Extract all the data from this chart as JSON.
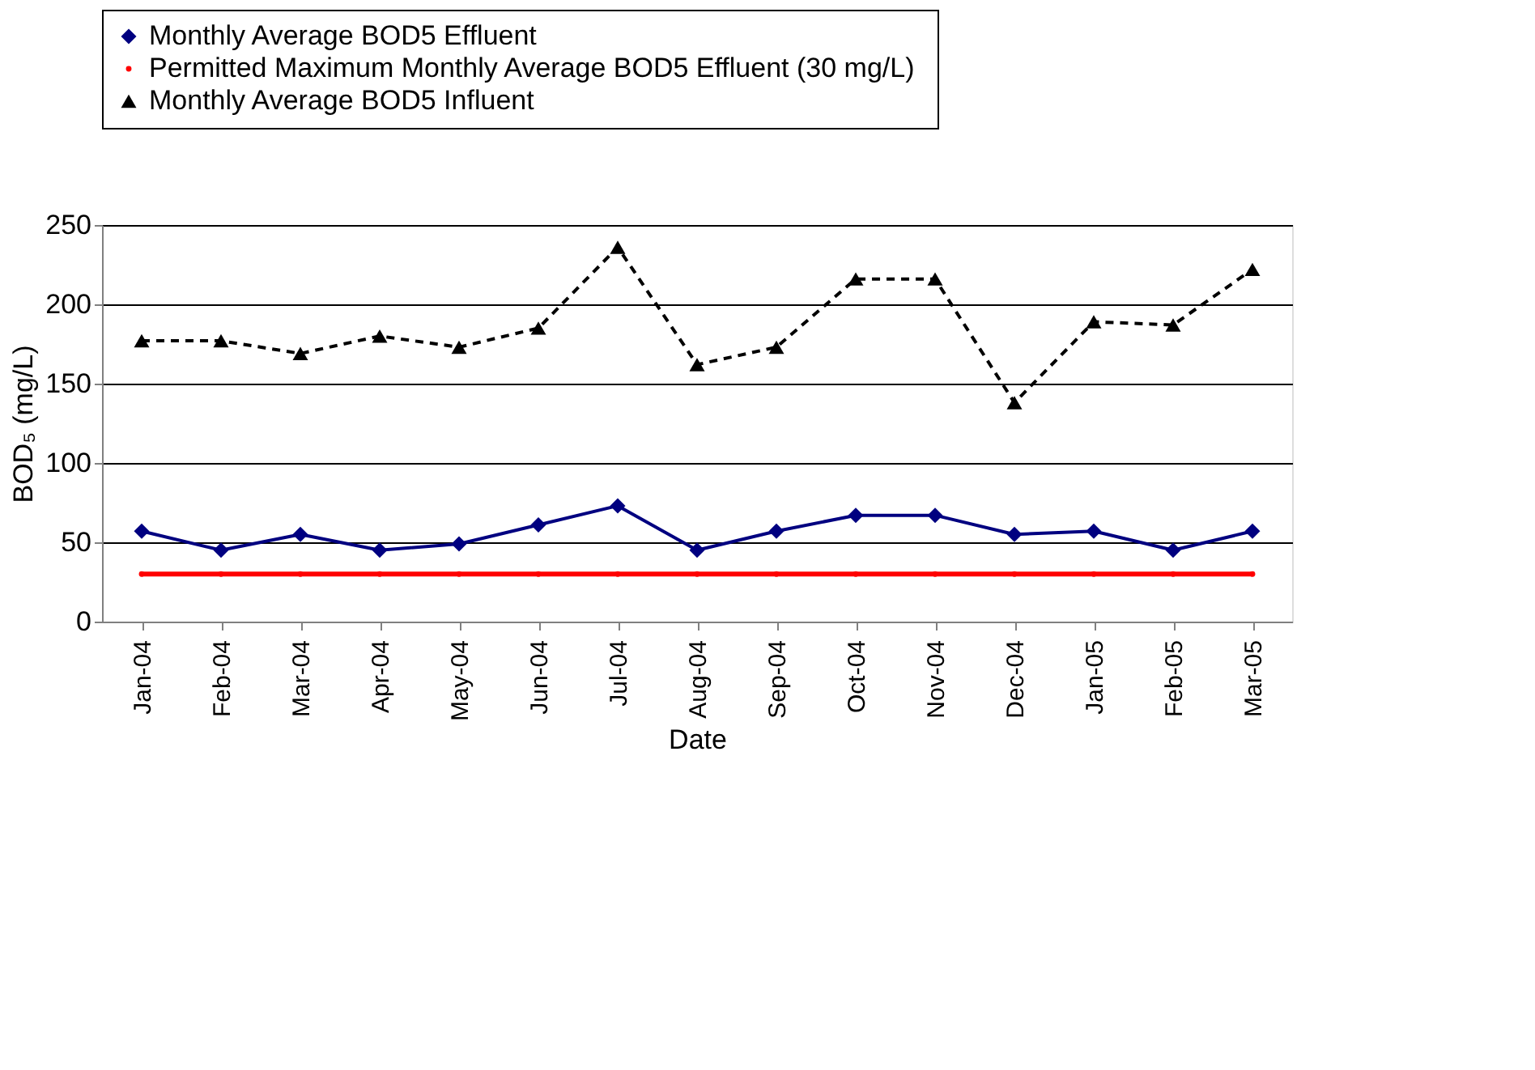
{
  "chart_data": {
    "type": "line",
    "xlabel": "Date",
    "ylabel": "BOD₅ (mg/L)",
    "categories": [
      "Jan-04",
      "Feb-04",
      "Mar-04",
      "Apr-04",
      "May-04",
      "Jun-04",
      "Jul-04",
      "Aug-04",
      "Sep-04",
      "Oct-04",
      "Nov-04",
      "Dec-04",
      "Jan-05",
      "Feb-05",
      "Mar-05"
    ],
    "series": [
      {
        "name": "Monthly Average BOD5 Effluent",
        "color": "#000080",
        "marker": "diamond",
        "line_style": "solid",
        "values": [
          57,
          45,
          55,
          45,
          49,
          61,
          73,
          45,
          57,
          67,
          67,
          55,
          57,
          45,
          57
        ]
      },
      {
        "name": "Permitted Maximum Monthly  Average BOD5 Effluent (30 mg/L)",
        "color": "#ff0000",
        "marker": "circle",
        "line_style": "solid",
        "values": [
          30,
          30,
          30,
          30,
          30,
          30,
          30,
          30,
          30,
          30,
          30,
          30,
          30,
          30,
          30
        ]
      },
      {
        "name": "Monthly Average BOD5 Influent",
        "color": "#000000",
        "marker": "triangle",
        "line_style": "dashed",
        "values": [
          177,
          177,
          169,
          180,
          173,
          185,
          236,
          162,
          173,
          216,
          216,
          138,
          189,
          187,
          222
        ]
      }
    ],
    "ylim": [
      0,
      250
    ],
    "yticks": [
      0,
      50,
      100,
      150,
      200,
      250
    ],
    "grid": "y",
    "legend": "top"
  }
}
